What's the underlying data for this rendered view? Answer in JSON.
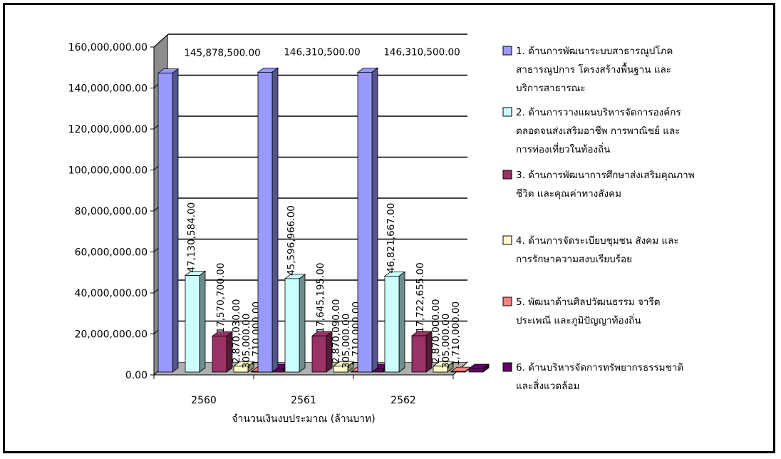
{
  "chart_data": {
    "type": "bar",
    "categories": [
      "2560",
      "2561",
      "2562"
    ],
    "xlabel": "จำนวนเงินงบประมาณ (ล้านบาท)",
    "ylim": [
      0,
      160000000
    ],
    "yticks": [
      0,
      20000000,
      40000000,
      60000000,
      80000000,
      100000000,
      120000000,
      140000000,
      160000000
    ],
    "ytick_labels": [
      "0.00",
      "20,000,000.00",
      "40,000,000.00",
      "60,000,000.00",
      "80,000,000.00",
      "100,000,000.00",
      "120,000,000.00",
      "140,000,000.00",
      "160,000,000.00"
    ],
    "grid": true,
    "legend_position": "right",
    "series": [
      {
        "name": "1. ด้านการพัฒนาระบบสาธารณูปโภค สาธารณูปการ โครงสร้างพื้นฐาน และบริการสาธารณะ",
        "legend_lines": [
          "1. ด้านการพัฒนาระบบสาธารณูปโภค",
          "สาธารณูปการ โครงสร้างพื้นฐาน และ",
          "บริการสาธารณะ"
        ],
        "color": "#9999ff",
        "values": [
          145878500,
          146310500,
          146310500
        ],
        "labels": [
          "145,878,500.00",
          "146,310,500.00",
          "146,310,500.00"
        ]
      },
      {
        "name": "2. ด้านการวางแผนบริหารจัดการองค์กร ตลอดจนส่งเสริมอาชีพ การพาณิชย์ และการท่องเที่ยวในท้องถิ่น",
        "legend_lines": [
          "2. ด้านการวางแผนบริหารจัดการองค์กร",
          "ตลอดจนส่งเสริมอาชีพ การพาณิชย์ และ",
          "การท่องเที่ยวในท้องถิ่น"
        ],
        "color": "#ccffff",
        "values": [
          47130584,
          45596966,
          46821667
        ],
        "labels": [
          "47,130,584.00",
          "45,596,966.00",
          "46,821,667.00"
        ]
      },
      {
        "name": "3. ด้านการพัฒนาการศึกษาส่งเสริมคุณภาพชีวิต และคุณค่าทางสังคม",
        "legend_lines": [
          "3. ด้านการพัฒนาการศึกษาส่งเสริมคุณภาพ",
          "ชีวิต และคุณค่าทางสังคม"
        ],
        "color": "#993366",
        "values": [
          17570700,
          17645195,
          17722655
        ],
        "labels": [
          "17,570,700.00",
          "17,645,195.00",
          "17,722,655.00"
        ]
      },
      {
        "name": "4. ด้านการจัดระเบียบชุมชน สังคม และการรักษาความสงบเรียบร้อย",
        "legend_lines": [
          "4. ด้านการจัดระเบียบชุมชน สังคม และ",
          "การรักษาความสงบเรียบร้อย"
        ],
        "color": "#ffffcc",
        "values": [
          2870030,
          2870090,
          2870000
        ],
        "labels": [
          "2,870,030.00",
          "2,870,090.00",
          "2,870,000.00"
        ]
      },
      {
        "name": "5. พัฒนาด้านศิลปวัฒนธรรม จารีตประเพณี และภูมิปัญญาท้องถิ่น",
        "legend_lines": [
          "5. พัฒนาด้านศิลปวัฒนธรรม จารีต",
          "ประเพณี และภูมิปัญญาท้องถิ่น"
        ],
        "color": "#ff8080",
        "values": [
          305000,
          305000,
          305000
        ],
        "labels": [
          "305,000.00",
          "305,000.00",
          "305,000.00"
        ]
      },
      {
        "name": "6. ด้านบริหารจัดการทรัพยากรธรรมชาติและสิ่งแวดล้อม",
        "legend_lines": [
          "6. ด้านบริหารจัดการทรัพยากรธรรมชาติ",
          "และสิ่งแวดล้อม"
        ],
        "color": "#660066",
        "values": [
          1710000,
          1710000,
          1710000
        ],
        "labels": [
          "1,710,000.00",
          "1,710,000.00",
          "1,710,000.00"
        ]
      }
    ]
  }
}
